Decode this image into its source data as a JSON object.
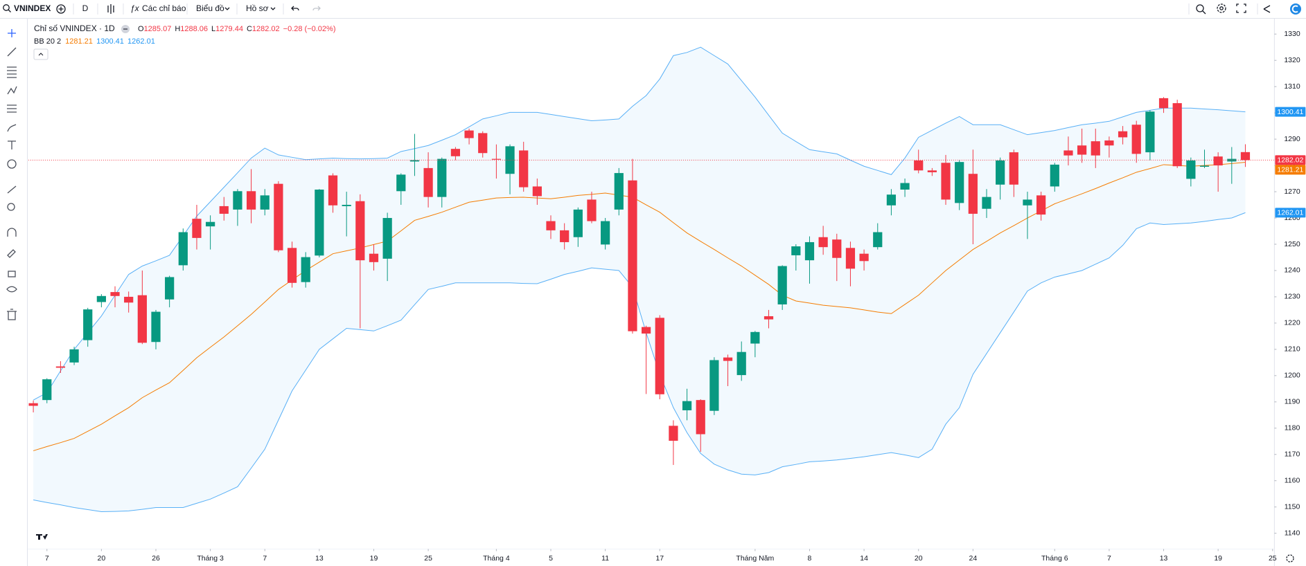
{
  "toolbar": {
    "symbol": "VNINDEX",
    "interval": "D",
    "indicators": "Các chỉ báo",
    "chart": "Biểu đồ",
    "profile": "Hồ sơ"
  },
  "chart_data": {
    "type": "candlestick",
    "title": "Chỉ số VNINDEX · 1D",
    "ohlc_prefixes": [
      "O",
      "H",
      "L",
      "C"
    ],
    "change": "−0.28 (−0.02%)",
    "up_color": "#089981",
    "down_color": "#f23645",
    "ylim": [
      1134,
      1336
    ],
    "yticks": [
      1140,
      1150,
      1160,
      1170,
      1180,
      1190,
      1200,
      1210,
      1220,
      1230,
      1240,
      1250,
      1260,
      1270,
      1280,
      1290,
      1300,
      1310,
      1320,
      1330
    ],
    "grid": false,
    "xticks": [
      {
        "value": 1,
        "label": "7"
      },
      {
        "value": 5,
        "label": "20"
      },
      {
        "value": 9,
        "label": "26"
      },
      {
        "value": 13,
        "label": "Tháng 3"
      },
      {
        "value": 17,
        "label": "7"
      },
      {
        "value": 21,
        "label": "13"
      },
      {
        "value": 25,
        "label": "19"
      },
      {
        "value": 29,
        "label": "25"
      },
      {
        "value": 34,
        "label": "Tháng 4"
      },
      {
        "value": 38,
        "label": "5"
      },
      {
        "value": 42,
        "label": "11"
      },
      {
        "value": 46,
        "label": "17"
      },
      {
        "value": 53,
        "label": "Tháng Năm"
      },
      {
        "value": 57,
        "label": "8"
      },
      {
        "value": 61,
        "label": "14"
      },
      {
        "value": 65,
        "label": "20"
      },
      {
        "value": 69,
        "label": "24"
      },
      {
        "value": 75,
        "label": "Tháng 6"
      },
      {
        "value": 79,
        "label": "7"
      },
      {
        "value": 83,
        "label": "13"
      },
      {
        "value": 87,
        "label": "19"
      },
      {
        "value": 91,
        "label": "25"
      }
    ],
    "candles": {
      "open": [
        1189.5,
        1190.7,
        1203.5,
        1205,
        1213.5,
        1228,
        1231.8,
        1230,
        1230.6,
        1212.8,
        1229,
        1242,
        1259.7,
        1256.8,
        1264.5,
        1263.2,
        1270.2,
        1263.2,
        1273,
        1248.6,
        1235.6,
        1245.7,
        1276.2,
        1264.5,
        1266.4,
        1246.4,
        1244.5,
        1270.2,
        1281.5,
        1279,
        1268,
        1286.3,
        1293.3,
        1292.3,
        1282.5,
        1276.8,
        1285.7,
        1272,
        1258.8,
        1255.3,
        1252.7,
        1267,
        1249.9,
        1263.2,
        1274.3,
        1218.5,
        1222,
        1180.9,
        1186.8,
        1190.7,
        1186.6,
        1206.9,
        1200.2,
        1212.2,
        1222.6,
        1227.1,
        1245.8,
        1243.9,
        1252.7,
        1251.8,
        1248.6,
        1246.4,
        1248.9,
        1264.8,
        1270.8,
        1281.9,
        1278.1,
        1281,
        1265.7,
        1276.8,
        1263.5,
        1272.7,
        1285,
        1264.8,
        1268.6,
        1272,
        1285.7,
        1287.6,
        1289.2,
        1289.5,
        1293,
        1295.5,
        1285,
        1305.6,
        1303.7,
        1274.9,
        1279.5,
        1283.4,
        1281.5,
        1285.07
      ],
      "high": [
        1190.5,
        1199,
        1205.5,
        1211,
        1225.8,
        1231,
        1234,
        1232,
        1240,
        1225,
        1238,
        1256,
        1265,
        1261,
        1268,
        1271,
        1278.6,
        1271,
        1274,
        1251,
        1247,
        1271,
        1277,
        1270,
        1269,
        1250,
        1262,
        1277,
        1292,
        1285,
        1283,
        1287,
        1294,
        1293,
        1288,
        1288,
        1289,
        1275,
        1261,
        1258,
        1264,
        1270,
        1260,
        1279,
        1282.5,
        1219,
        1223,
        1183,
        1195,
        1191,
        1207,
        1208,
        1213,
        1217,
        1225,
        1242,
        1250,
        1253,
        1257,
        1254,
        1251,
        1248,
        1258,
        1271,
        1275,
        1286,
        1279,
        1284,
        1282,
        1286,
        1271,
        1283,
        1286,
        1270,
        1270,
        1281,
        1291,
        1294,
        1294,
        1291,
        1295,
        1297,
        1301,
        1306,
        1305,
        1283,
        1286,
        1285,
        1287,
        1288.06
      ],
      "low": [
        1186,
        1189.5,
        1201,
        1204,
        1211,
        1226,
        1226,
        1224,
        1212,
        1210,
        1226,
        1240,
        1248,
        1248,
        1259,
        1257,
        1258,
        1261,
        1247,
        1233.5,
        1233.5,
        1245,
        1262,
        1253,
        1218,
        1240,
        1236,
        1265,
        1276,
        1264,
        1264,
        1282,
        1288,
        1283,
        1275,
        1269,
        1270,
        1265,
        1252,
        1248,
        1249,
        1258,
        1248,
        1261,
        1216,
        1193,
        1191,
        1166,
        1183,
        1171,
        1185,
        1196,
        1198,
        1207,
        1218,
        1225,
        1240,
        1235,
        1246,
        1236,
        1234,
        1240,
        1248,
        1261,
        1268,
        1277,
        1276,
        1265,
        1263,
        1250,
        1260,
        1267,
        1268,
        1252,
        1259,
        1270,
        1280,
        1281,
        1279,
        1283,
        1288,
        1281,
        1282,
        1300,
        1279,
        1272,
        1279,
        1270,
        1273,
        1279.44
      ],
      "close": [
        1188.5,
        1198.6,
        1203,
        1210,
        1225.2,
        1230.3,
        1230.3,
        1227.8,
        1212.5,
        1224.3,
        1237.5,
        1254.6,
        1252.4,
        1258.5,
        1261.6,
        1270.2,
        1263.2,
        1268.6,
        1247.7,
        1235.3,
        1245.1,
        1270.8,
        1264.8,
        1265,
        1243.9,
        1243.2,
        1260,
        1276.5,
        1282,
        1268,
        1282.5,
        1283.5,
        1290.4,
        1284.7,
        1282.2,
        1287.3,
        1271.7,
        1268.3,
        1255.3,
        1250.8,
        1263.2,
        1258.8,
        1258.8,
        1277.1,
        1216.9,
        1216,
        1192.9,
        1175.2,
        1190.3,
        1177.7,
        1205.9,
        1205.6,
        1209,
        1216.6,
        1221.4,
        1241.7,
        1249.2,
        1250.8,
        1248.9,
        1244.8,
        1240.7,
        1243.6,
        1254.6,
        1268.9,
        1273.3,
        1278.1,
        1277.4,
        1267,
        1281.3,
        1261.6,
        1268,
        1281.9,
        1272.7,
        1267,
        1261.3,
        1280.3,
        1283.8,
        1284.1,
        1283.8,
        1287.6,
        1290.7,
        1284.4,
        1300.5,
        1301.8,
        1279.7,
        1281.9,
        1279.9,
        1280,
        1282.5,
        1282.02
      ]
    },
    "bollinger": {
      "label": "BB 20 2",
      "fill": "#2196f3",
      "basis": {
        "color": "#f57c00",
        "values": [
          1171.4,
          1173,
          1174.5,
          1176.1,
          1178.8,
          1181.5,
          1184.7,
          1187.8,
          1191.6,
          1194.5,
          1197.3,
          1202,
          1206.8,
          1210.8,
          1214.7,
          1219,
          1223.3,
          1228,
          1232.8,
          1236.4,
          1240,
          1243.2,
          1246.4,
          1247.5,
          1248.6,
          1249.9,
          1251.2,
          1255.1,
          1259.1,
          1260.6,
          1262.2,
          1264.1,
          1266,
          1266.8,
          1267.6,
          1267.8,
          1267.9,
          1267.6,
          1267.3,
          1267.9,
          1268.6,
          1269,
          1269.5,
          1268.7,
          1267.9,
          1265,
          1262.2,
          1258.2,
          1254.3,
          1251.1,
          1248,
          1244.8,
          1241.7,
          1238.2,
          1234.7,
          1230.6,
          1228.4,
          1227.6,
          1226.8,
          1226.3,
          1225.8,
          1225,
          1224.2,
          1223.6,
          1227.1,
          1230.6,
          1235.3,
          1240,
          1244,
          1248,
          1251.1,
          1254.3,
          1257.1,
          1260,
          1262.7,
          1265.4,
          1267.3,
          1269.2,
          1271.2,
          1273.3,
          1275.3,
          1277.4,
          1278.8,
          1280.3,
          1280,
          1279.7,
          1280,
          1280.3,
          1280.7,
          1281.21
        ]
      },
      "upper": {
        "color": "#2196f3",
        "values": [
          1190.7,
          1193.5,
          1201.8,
          1210,
          1216.3,
          1222.7,
          1230.6,
          1238.5,
          1241.7,
          1243.7,
          1245.8,
          1253.2,
          1260.7,
          1266.2,
          1271.7,
          1277.2,
          1282.8,
          1286.6,
          1284,
          1283.1,
          1282.2,
          1282.5,
          1282.8,
          1282.6,
          1282.5,
          1282.6,
          1282.8,
          1285.3,
          1286.4,
          1287.6,
          1289.6,
          1291.7,
          1294.7,
          1297.7,
          1298.9,
          1300.2,
          1300.2,
          1300.2,
          1299.4,
          1298.6,
          1297.8,
          1297,
          1297.3,
          1297.7,
          1302.5,
          1306.6,
          1312.9,
          1321.8,
          1323,
          1325,
          1321.8,
          1318.6,
          1312.3,
          1306,
          1299.1,
          1292.3,
          1289.1,
          1286,
          1285.2,
          1284.4,
          1282,
          1279.7,
          1278.1,
          1276.5,
          1282.8,
          1290.7,
          1293.4,
          1296.1,
          1298.6,
          1295.5,
          1295.5,
          1295.5,
          1293.6,
          1291.7,
          1292.5,
          1293.3,
          1294.4,
          1295.5,
          1296.1,
          1296.8,
          1298.5,
          1300.2,
          1301,
          1301.8,
          1301.8,
          1301.8,
          1301.5,
          1301.2,
          1300.8,
          1300.41
        ]
      },
      "lower": {
        "color": "#2196f3",
        "values": [
          1152.7,
          1151.7,
          1150.8,
          1149.8,
          1149,
          1148.2,
          1148.3,
          1148.5,
          1149.1,
          1149.8,
          1149.8,
          1149.8,
          1151.4,
          1153,
          1155.3,
          1157.7,
          1164.8,
          1172,
          1183.1,
          1194.2,
          1202.1,
          1210,
          1214,
          1218,
          1217.5,
          1217,
          1219,
          1221.1,
          1227,
          1232.8,
          1234,
          1235.3,
          1235.3,
          1235.3,
          1235.3,
          1235.3,
          1235.1,
          1235,
          1236.7,
          1238.5,
          1239.7,
          1241,
          1240.5,
          1240,
          1233.7,
          1216.3,
          1200.5,
          1187.8,
          1178.3,
          1170.4,
          1166.3,
          1164.1,
          1162.5,
          1162.2,
          1163.1,
          1165.3,
          1166.2,
          1167.2,
          1167.5,
          1167.9,
          1168.5,
          1169.1,
          1169.9,
          1170.7,
          1169.8,
          1168.8,
          1172,
          1181.5,
          1187.8,
          1200.5,
          1208.4,
          1216.3,
          1224.2,
          1232.2,
          1235.3,
          1237.5,
          1238.7,
          1240,
          1242.4,
          1244.8,
          1249.6,
          1255.9,
          1258.1,
          1257.5,
          1257.8,
          1258.1,
          1258.7,
          1259.4,
          1260,
          1262.01
        ]
      }
    }
  }
}
